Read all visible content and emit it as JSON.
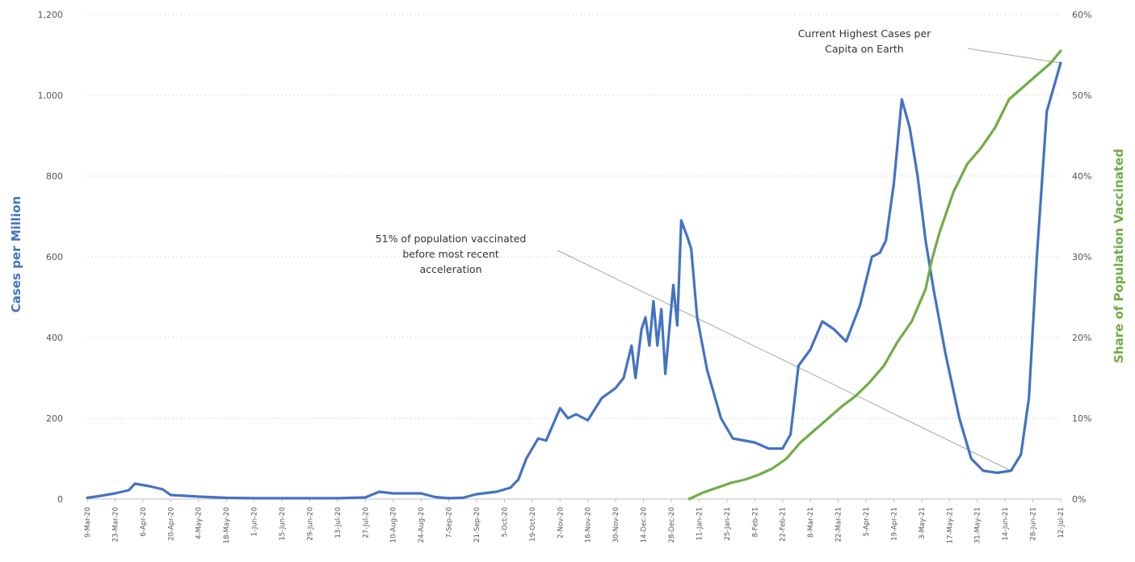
{
  "chart_data": {
    "type": "line",
    "title": "",
    "xlabel": "",
    "ylabel": "Cases per Million",
    "y2label": "Share of Population Vaccinated",
    "ylim": [
      0,
      1200
    ],
    "y_ticks": [
      "0",
      "200",
      "400",
      "600",
      "800",
      "1,000",
      "1,200"
    ],
    "y2lim": [
      0,
      60
    ],
    "y2_ticks": [
      "0%",
      "10%",
      "20%",
      "30%",
      "40%",
      "50%",
      "60%"
    ],
    "x_ticks": [
      "9-Mar-20",
      "23-Mar-20",
      "6-Apr-20",
      "20-Apr-20",
      "4-May-20",
      "18-May-20",
      "1-Jun-20",
      "15-Jun-20",
      "29-Jun-20",
      "13-Jul-20",
      "27-Jul-20",
      "10-Aug-20",
      "24-Aug-20",
      "7-Sep-20",
      "21-Sep-20",
      "5-Oct-20",
      "19-Oct-20",
      "2-Nov-20",
      "16-Nov-20",
      "30-Nov-20",
      "14-Dec-20",
      "28-Dec-20",
      "11-Jan-21",
      "25-Jan-21",
      "8-Feb-21",
      "22-Feb-21",
      "8-Mar-21",
      "22-Mar-21",
      "5-Apr-21",
      "19-Apr-21",
      "3-May-21",
      "17-May-21",
      "31-May-21",
      "14-Jun-21",
      "28-Jun-21",
      "12-Jul-21"
    ],
    "grid": true,
    "colors": {
      "cases": "#4472c4",
      "vaccinated": "#70ad47",
      "annotation_line": "#a6a6a6"
    },
    "series": [
      {
        "axis": "left",
        "color": "#4472c4",
        "points": [
          [
            "2020-03-09",
            3
          ],
          [
            "2020-03-16",
            8
          ],
          [
            "2020-03-23",
            14
          ],
          [
            "2020-03-30",
            22
          ],
          [
            "2020-04-02",
            38
          ],
          [
            "2020-04-09",
            32
          ],
          [
            "2020-04-16",
            24
          ],
          [
            "2020-04-20",
            10
          ],
          [
            "2020-05-04",
            6
          ],
          [
            "2020-05-18",
            3
          ],
          [
            "2020-06-01",
            2
          ],
          [
            "2020-06-15",
            2
          ],
          [
            "2020-06-29",
            2
          ],
          [
            "2020-07-13",
            2
          ],
          [
            "2020-07-27",
            4
          ],
          [
            "2020-08-03",
            18
          ],
          [
            "2020-08-10",
            14
          ],
          [
            "2020-08-24",
            14
          ],
          [
            "2020-08-31",
            5
          ],
          [
            "2020-09-07",
            2
          ],
          [
            "2020-09-14",
            3
          ],
          [
            "2020-09-21",
            12
          ],
          [
            "2020-10-01",
            18
          ],
          [
            "2020-10-08",
            28
          ],
          [
            "2020-10-12",
            48
          ],
          [
            "2020-10-16",
            100
          ],
          [
            "2020-10-22",
            150
          ],
          [
            "2020-10-26",
            145
          ],
          [
            "2020-11-02",
            225
          ],
          [
            "2020-11-06",
            200
          ],
          [
            "2020-11-10",
            210
          ],
          [
            "2020-11-16",
            195
          ],
          [
            "2020-11-23",
            250
          ],
          [
            "2020-11-30",
            275
          ],
          [
            "2020-12-04",
            300
          ],
          [
            "2020-12-08",
            380
          ],
          [
            "2020-12-10",
            300
          ],
          [
            "2020-12-13",
            420
          ],
          [
            "2020-12-15",
            450
          ],
          [
            "2020-12-17",
            380
          ],
          [
            "2020-12-19",
            490
          ],
          [
            "2020-12-21",
            380
          ],
          [
            "2020-12-23",
            470
          ],
          [
            "2020-12-25",
            310
          ],
          [
            "2020-12-27",
            420
          ],
          [
            "2020-12-29",
            530
          ],
          [
            "2020-12-31",
            430
          ],
          [
            "2021-01-02",
            690
          ],
          [
            "2021-01-05",
            650
          ],
          [
            "2021-01-07",
            620
          ],
          [
            "2021-01-10",
            450
          ],
          [
            "2021-01-15",
            320
          ],
          [
            "2021-01-22",
            200
          ],
          [
            "2021-01-28",
            150
          ],
          [
            "2021-02-08",
            140
          ],
          [
            "2021-02-15",
            125
          ],
          [
            "2021-02-22",
            125
          ],
          [
            "2021-02-26",
            160
          ],
          [
            "2021-03-02",
            330
          ],
          [
            "2021-03-08",
            370
          ],
          [
            "2021-03-14",
            440
          ],
          [
            "2021-03-20",
            420
          ],
          [
            "2021-03-26",
            390
          ],
          [
            "2021-04-02",
            480
          ],
          [
            "2021-04-08",
            600
          ],
          [
            "2021-04-12",
            610
          ],
          [
            "2021-04-15",
            640
          ],
          [
            "2021-04-19",
            780
          ],
          [
            "2021-04-23",
            990
          ],
          [
            "2021-04-27",
            920
          ],
          [
            "2021-05-01",
            800
          ],
          [
            "2021-05-05",
            640
          ],
          [
            "2021-05-09",
            520
          ],
          [
            "2021-05-15",
            360
          ],
          [
            "2021-05-22",
            200
          ],
          [
            "2021-05-28",
            100
          ],
          [
            "2021-06-03",
            70
          ],
          [
            "2021-06-10",
            65
          ],
          [
            "2021-06-17",
            70
          ],
          [
            "2021-06-22",
            110
          ],
          [
            "2021-06-26",
            250
          ],
          [
            "2021-06-30",
            600
          ],
          [
            "2021-07-05",
            960
          ],
          [
            "2021-07-12",
            1080
          ]
        ]
      },
      {
        "axis": "right",
        "color": "#70ad47",
        "points": [
          [
            "2021-01-06",
            0
          ],
          [
            "2021-01-13",
            0.8
          ],
          [
            "2021-01-20",
            1.4
          ],
          [
            "2021-01-27",
            2.0
          ],
          [
            "2021-02-03",
            2.4
          ],
          [
            "2021-02-10",
            3.0
          ],
          [
            "2021-02-17",
            3.8
          ],
          [
            "2021-02-24",
            5.0
          ],
          [
            "2021-03-03",
            7.0
          ],
          [
            "2021-03-10",
            8.5
          ],
          [
            "2021-03-17",
            10.0
          ],
          [
            "2021-03-24",
            11.5
          ],
          [
            "2021-03-31",
            12.8
          ],
          [
            "2021-04-07",
            14.5
          ],
          [
            "2021-04-14",
            16.5
          ],
          [
            "2021-04-21",
            19.5
          ],
          [
            "2021-04-28",
            22.0
          ],
          [
            "2021-05-05",
            26.0
          ],
          [
            "2021-05-08",
            29.5
          ],
          [
            "2021-05-12",
            33.0
          ],
          [
            "2021-05-19",
            38.0
          ],
          [
            "2021-05-26",
            41.5
          ],
          [
            "2021-06-02",
            43.5
          ],
          [
            "2021-06-09",
            46.0
          ],
          [
            "2021-06-16",
            49.5
          ],
          [
            "2021-06-23",
            51.0
          ],
          [
            "2021-06-30",
            52.5
          ],
          [
            "2021-07-07",
            54.0
          ],
          [
            "2021-07-12",
            55.5
          ]
        ]
      }
    ],
    "annotations": [
      {
        "lines": [
          "51% of population vaccinated",
          "before most recent",
          "acceleration"
        ],
        "points_to": [
          "2021-06-17",
          70
        ]
      },
      {
        "lines": [
          "Current Highest Cases per",
          "Capita on Earth"
        ],
        "points_to": [
          "2021-07-12",
          1080
        ]
      }
    ]
  }
}
